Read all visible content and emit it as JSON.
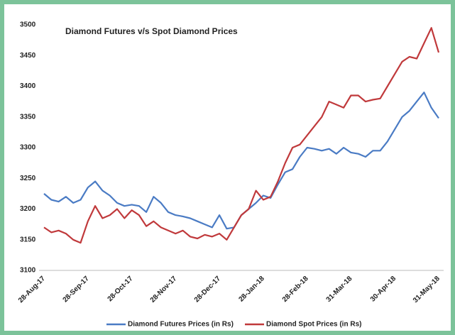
{
  "chart_data": {
    "type": "line",
    "title": "Diamond Futures v/s Spot Diamond Prices",
    "categories": [
      "28-Aug-17",
      null,
      null,
      null,
      null,
      null,
      "28-Sep-17",
      null,
      null,
      null,
      null,
      null,
      "28-Oct-17",
      null,
      null,
      null,
      null,
      null,
      "28-Nov-17",
      null,
      null,
      null,
      null,
      null,
      "28-Dec-17",
      null,
      null,
      null,
      null,
      null,
      "28-Jan-18",
      null,
      null,
      null,
      null,
      null,
      "28-Feb-18",
      null,
      null,
      null,
      null,
      null,
      "31-Mar-18",
      null,
      null,
      null,
      null,
      null,
      "30-Apr-18",
      null,
      null,
      null,
      null,
      null,
      "31-May-18"
    ],
    "series": [
      {
        "name": "Diamond  Futures Prices (in Rs)",
        "color": "#4a7bc4",
        "values": [
          3225,
          3215,
          3212,
          3220,
          3210,
          3215,
          3235,
          3245,
          3230,
          3222,
          3210,
          3205,
          3207,
          3205,
          3195,
          3220,
          3210,
          3195,
          3190,
          3188,
          3185,
          3180,
          3175,
          3170,
          3190,
          3168,
          3170,
          3190,
          3200,
          3210,
          3222,
          3218,
          3240,
          3260,
          3265,
          3285,
          3300,
          3298,
          3295,
          3298,
          3290,
          3300,
          3292,
          3290,
          3285,
          3295,
          3295,
          3310,
          3330,
          3350,
          3360,
          3375,
          3390,
          3365,
          3348
        ]
      },
      {
        "name": "Diamond Spot Prices (in Rs)",
        "color": "#c0393b",
        "values": [
          3170,
          3162,
          3165,
          3160,
          3150,
          3145,
          3180,
          3205,
          3185,
          3190,
          3200,
          3185,
          3198,
          3190,
          3172,
          3180,
          3170,
          3165,
          3160,
          3165,
          3155,
          3152,
          3158,
          3155,
          3160,
          3150,
          3170,
          3190,
          3200,
          3230,
          3215,
          3220,
          3245,
          3275,
          3300,
          3305,
          3320,
          3335,
          3350,
          3375,
          3370,
          3365,
          3385,
          3385,
          3375,
          3378,
          3380,
          3400,
          3420,
          3440,
          3448,
          3445,
          3470,
          3495,
          3455
        ]
      }
    ],
    "ylim": [
      3100,
      3500
    ],
    "yticks": [
      3100,
      3150,
      3200,
      3250,
      3300,
      3350,
      3400,
      3450,
      3500
    ],
    "grid": false,
    "legend": "bottom"
  }
}
